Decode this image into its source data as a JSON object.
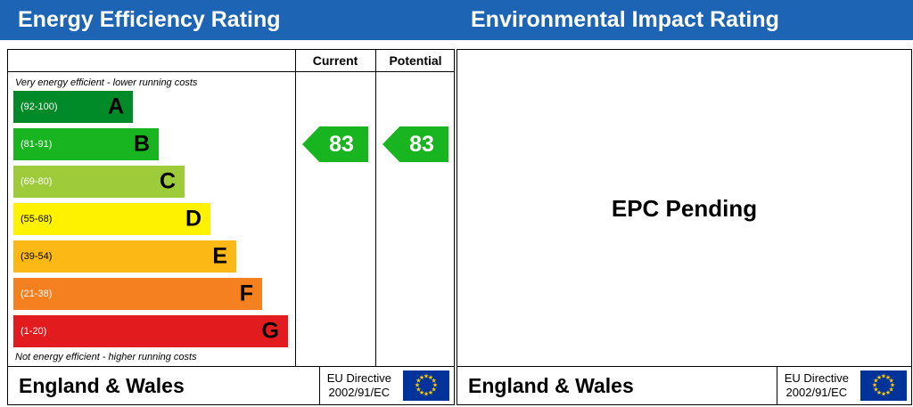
{
  "colors": {
    "header_bg": "#1e64b5",
    "eu_flag_bg": "#003399",
    "eu_star": "#ffcc00"
  },
  "header": {
    "left_title": "Energy Efficiency Rating",
    "right_title": "Environmental Impact Rating"
  },
  "left_panel": {
    "column_current": "Current",
    "column_potential": "Potential",
    "note_top": "Very energy efficient - lower running costs",
    "note_bottom": "Not energy efficient - higher running costs"
  },
  "right_panel": {
    "pending_text": "EPC Pending"
  },
  "footer": {
    "region": "England & Wales",
    "eu_line1": "EU Directive",
    "eu_line2": "2002/91/EC"
  },
  "chart_data": {
    "type": "bar",
    "title": "Energy Efficiency Rating",
    "categories": [
      "A",
      "B",
      "C",
      "D",
      "E",
      "F",
      "G"
    ],
    "bands": [
      {
        "letter": "A",
        "range": "(92-100)",
        "color": "#008a28",
        "range_text": "#ffffff"
      },
      {
        "letter": "B",
        "range": "(81-91)",
        "color": "#19b520",
        "range_text": "#ffffff"
      },
      {
        "letter": "C",
        "range": "(69-80)",
        "color": "#9ecb3a",
        "range_text": "#ffffff"
      },
      {
        "letter": "D",
        "range": "(55-68)",
        "color": "#fff200",
        "range_text": "#000000"
      },
      {
        "letter": "E",
        "range": "(39-54)",
        "color": "#fcb814",
        "range_text": "#000000"
      },
      {
        "letter": "F",
        "range": "(21-38)",
        "color": "#f5801f",
        "range_text": "#ffffff"
      },
      {
        "letter": "G",
        "range": "(1-20)",
        "color": "#e21b1f",
        "range_text": "#ffffff"
      }
    ],
    "current": {
      "value": 83,
      "band": "B"
    },
    "potential": {
      "value": 83,
      "band": "B"
    }
  }
}
